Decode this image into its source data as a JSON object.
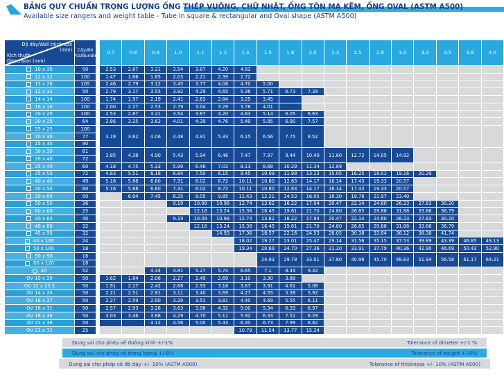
{
  "title": {
    "main": "BẢNG QUY CHUẨN TRỌNG LƯỢNG ỐNG THÉP VUÔNG, CHỮ NHẬT,  ỐNG TÔN MẠ KẼM, ỐNG OVAL (ASTM A500)",
    "sub": "Available size rangers and weight table - Tube in square & rectangular and Oval shape (ASTM A500)"
  },
  "colors": {
    "cyan_header": "#29a9e0",
    "navy_cell": "#174a96",
    "label_dark": "#2ba0d7",
    "label_light": "#45b0e1",
    "empty_grey": "#d8d9db",
    "title_navy": "#16418f"
  },
  "table": {
    "corner": {
      "wall_label": "Độ dày/Wall thickness",
      "wall_unit": "(mm)",
      "dim_label1": "Kích thước",
      "dim_label2": "Dimension (mm)"
    },
    "bundle_line1": "Cây/Bó",
    "bundle_line2": "Pcs/Bundle",
    "columns": [
      "0.7",
      "0.8",
      "0.9",
      "1.0",
      "1.1",
      "1.2",
      "1.4",
      "1.5",
      "1.8",
      "2.0",
      "2.3",
      "2.5",
      "2.8",
      "3.0",
      "3.2",
      "3.5",
      "3.8",
      "4.0"
    ],
    "groups": [
      {
        "rows": [
          {
            "size": "10 x 30",
            "pcs": "50",
            "icon": "square"
          }
        ],
        "values": [
          "2.53",
          "2.87",
          "3.21",
          "3.54",
          "3.87",
          "4.20",
          "4.83",
          null,
          null,
          null,
          null,
          null,
          null,
          null,
          null,
          null,
          null,
          null
        ]
      },
      {
        "rows": [
          {
            "size": "12 x 12",
            "pcs": "100",
            "icon": "square"
          }
        ],
        "values": [
          "1.47",
          "1.66",
          "1.85",
          "2.03",
          "2.21",
          "2.39",
          "2.72",
          null,
          null,
          null,
          null,
          null,
          null,
          null,
          null,
          null,
          null,
          null
        ]
      },
      {
        "rows": [
          {
            "size": "13 x 26",
            "pcs": "105",
            "icon": "square"
          }
        ],
        "values": [
          "2.46",
          "2.79",
          "3.12",
          "3.45",
          "3.77",
          "4.08",
          "4.70",
          "5.00",
          null,
          null,
          null,
          null,
          null,
          null,
          null,
          null,
          null,
          null
        ]
      },
      {
        "rows": [
          {
            "size": "12 x 32",
            "pcs": "50",
            "icon": "square"
          }
        ],
        "values": [
          "2.79",
          "3.17",
          "3.55",
          "3.92",
          "4.29",
          "4.65",
          "5.36",
          "5.71",
          "6.73",
          "7.39",
          null,
          null,
          null,
          null,
          null,
          null,
          null,
          null
        ]
      },
      {
        "rows": [
          {
            "size": "14 x 14",
            "pcs": "100",
            "icon": "square"
          }
        ],
        "values": [
          "1.74",
          "1.97",
          "2.19",
          "2.41",
          "2.63",
          "2.84",
          "3.25",
          "3.45",
          "",
          null,
          null,
          null,
          null,
          null,
          null,
          null,
          null,
          null
        ]
      },
      {
        "rows": [
          {
            "size": "16 x 16",
            "pcs": "100",
            "icon": "square"
          }
        ],
        "values": [
          "2.00",
          "2.27",
          "2.53",
          "2.79",
          "3.04",
          "3.29",
          "3.78",
          "4.01",
          "",
          null,
          null,
          null,
          null,
          null,
          null,
          null,
          null,
          null
        ]
      },
      {
        "rows": [
          {
            "size": "20 x 20",
            "pcs": "100",
            "icon": "square"
          }
        ],
        "values": [
          "2.53",
          "2.87",
          "3.21",
          "3.54",
          "3.87",
          "4.20",
          "4.83",
          "5.14",
          "6.05",
          "6.63",
          null,
          null,
          null,
          null,
          null,
          null,
          null,
          null
        ]
      },
      {
        "rows": [
          {
            "size": "20 x 25",
            "pcs": "64",
            "icon": "square"
          }
        ],
        "values": [
          "2.86",
          "3.25",
          "3.63",
          "4.01",
          "4.39",
          "4.76",
          "5.49",
          "5.85",
          "6.90",
          "7.57",
          null,
          null,
          null,
          null,
          null,
          null,
          null,
          null
        ]
      },
      {
        "rows": [
          {
            "size": "25 x 25",
            "pcs": "100",
            "icon": "square"
          },
          {
            "size": "20 x 30",
            "pcs": "77",
            "icon": "square"
          },
          {
            "size": "15 x 35",
            "pcs": "90",
            "icon": "square"
          }
        ],
        "values": [
          "3.19",
          "3.62",
          "4.06",
          "4.48",
          "4.91",
          "5.33",
          "6.15",
          "6.56",
          "7.75",
          "8.52",
          null,
          null,
          null,
          null,
          null,
          null,
          null,
          null
        ]
      },
      {
        "rows": [
          {
            "size": "30 x 30",
            "pcs": "81",
            "icon": "square"
          },
          {
            "size": "20 x 40",
            "pcs": "72",
            "icon": "square"
          }
        ],
        "values": [
          "3.85",
          "4.38",
          "4.90",
          "5.43",
          "5.94",
          "6.46",
          "7.47",
          "7.97",
          "9.44",
          "10.40",
          "11.80",
          "12.72",
          "14.05",
          "14.92",
          null,
          null,
          null,
          null
        ]
      },
      {
        "rows": [
          {
            "size": "25 x 40",
            "pcs": "60",
            "icon": "square"
          }
        ],
        "values": [
          "4.18",
          "4.75",
          "5.33",
          "5.90",
          "6.46",
          "7.02",
          "8.13",
          "8.68",
          "10.29",
          "11.34",
          "12.89",
          null,
          null,
          null,
          null,
          null,
          null,
          null
        ]
      },
      {
        "rows": [
          {
            "size": "25 x 50",
            "pcs": "72",
            "icon": "square"
          }
        ],
        "values": [
          "4.83",
          "5.51",
          "6.18",
          "6.84",
          "7.50",
          "8.15",
          "9.45",
          "10.09",
          "11.98",
          "13.23",
          "15.05",
          "16.25",
          "18.01",
          "19.16",
          "20.29",
          null,
          null,
          null
        ]
      },
      {
        "rows": [
          {
            "size": "40 x 40",
            "pcs": "49",
            "icon": "square"
          }
        ],
        "values": [
          "5.16",
          "5.88",
          "6.60",
          "7.31",
          "8.02",
          "8.72",
          "10.11",
          "10.80",
          "12.83",
          "14.17",
          "16.14",
          "17.43",
          "19.33",
          "20.57",
          null,
          null,
          null,
          null
        ]
      },
      {
        "rows": [
          {
            "size": "30 x 50",
            "pcs": "60",
            "icon": "square"
          }
        ],
        "values": [
          "5.16",
          "5.88",
          "6.60",
          "7.31",
          "8.02",
          "8.72",
          "10.11",
          "10.80",
          "12.83",
          "14.17",
          "16.14",
          "17.43",
          "19.33",
          "20.57",
          null,
          null,
          null,
          null
        ]
      },
      {
        "rows": [
          {
            "size": "30 x 60",
            "pcs": "50",
            "icon": "square"
          }
        ],
        "values": [
          null,
          "6.64",
          "7.45",
          "8.25",
          "9.05",
          "9.85",
          "11.43",
          "12.21",
          "14.53",
          "16.05",
          "18.30",
          "19.78",
          "21.97",
          "23.40",
          null,
          null,
          null,
          null
        ]
      },
      {
        "rows": [
          {
            "size": "50 x 50",
            "pcs": "36",
            "icon": "square"
          }
        ],
        "values": [
          null,
          null,
          null,
          "9.19",
          "10.09",
          "10.98",
          "12.74",
          "13.62",
          "16.22",
          "17.94",
          "20.47",
          "22.14",
          "24.60",
          "26.23",
          "27.83",
          "30.20",
          null,
          null
        ]
      },
      {
        "rows": [
          {
            "size": "60 x 60",
            "pcs": "25",
            "icon": "square"
          }
        ],
        "values": [
          null,
          null,
          null,
          null,
          "12.16",
          "13.24",
          "15.38",
          "16.45",
          "19.61",
          "21.70",
          "24.80",
          "26.85",
          "29.88",
          "31.88",
          "33.86",
          "36.79",
          null,
          null
        ]
      },
      {
        "rows": [
          {
            "size": "40 x 60",
            "pcs": "40",
            "icon": "square"
          }
        ],
        "values": [
          null,
          null,
          null,
          "9.19",
          "10.09",
          "10.98",
          "12.74",
          "13.62",
          "16.22",
          "17.94",
          "20.47",
          "22.14",
          "24.60",
          "26.23",
          "27.83",
          "30.20",
          null,
          null
        ]
      },
      {
        "rows": [
          {
            "size": "40 x 80",
            "pcs": "32",
            "icon": "square"
          }
        ],
        "values": [
          null,
          null,
          null,
          null,
          "12.16",
          "13.24",
          "15.38",
          "16.45",
          "19.61",
          "21.70",
          "24.80",
          "26.85",
          "29.88",
          "31.88",
          "33.86",
          "36.79",
          null,
          null
        ]
      },
      {
        "rows": [
          {
            "size": "45 x 90",
            "pcs": "32",
            "icon": "square"
          }
        ],
        "values": [
          null,
          null,
          null,
          null,
          null,
          "14.93",
          "17.36",
          "18.57",
          "22.16",
          "24.53",
          "28.05",
          "30.38",
          "33.84",
          "36.12",
          "38.38",
          "41.74",
          null,
          null
        ]
      },
      {
        "rows": [
          {
            "size": "40 x 100",
            "pcs": "24",
            "icon": "square"
          }
        ],
        "values": [
          null,
          null,
          null,
          null,
          null,
          null,
          "18.02",
          "19.27",
          "23.01",
          "25.47",
          "29.14",
          "31.56",
          "35.15",
          "37.53",
          "39.89",
          "43.39",
          "46.85",
          "49.13"
        ]
      },
      {
        "rows": [
          {
            "size": "50 x 100",
            "pcs": "18",
            "icon": "square"
          }
        ],
        "values": [
          null,
          null,
          null,
          null,
          null,
          null,
          "19.34",
          "20.69",
          "24.70",
          "27.36",
          "31.30",
          "33.91",
          "37.79",
          "40.36",
          "42.90",
          "46.69",
          "50.43",
          "52.90"
        ]
      },
      {
        "rows": [
          {
            "size": "90 x 90",
            "pcs": "16",
            "icon": "square"
          },
          {
            "size": "60 x 120",
            "pcs": "18",
            "icon": "square"
          }
        ],
        "values": [
          null,
          null,
          null,
          null,
          null,
          null,
          null,
          "24.93",
          "29.79",
          "33.01",
          "37.80",
          "40.98",
          "45.70",
          "48.83",
          "51.94",
          "56.58",
          "61.17",
          "64.21"
        ]
      },
      {
        "rows": [
          {
            "size": "30",
            "pcs": "52",
            "icon": "circle"
          }
        ],
        "values": [
          null,
          null,
          "4.34",
          "4.81",
          "5.27",
          "5.74",
          "6.65",
          "7.1",
          "8.44",
          "9.32",
          null,
          null,
          null,
          null,
          null,
          null,
          null,
          null
        ]
      },
      {
        "rows": [
          {
            "size": "OV 10 x 20",
            "pcs": "50",
            "icon": "none"
          }
        ],
        "values": [
          "1.62",
          "1.84",
          "2.06",
          "2.27",
          "2.49",
          "2.69",
          "3.10",
          "3.30",
          "3.88",
          null,
          null,
          null,
          null,
          null,
          null,
          null,
          null,
          null
        ]
      },
      {
        "rows": [
          {
            "size": "OV 12 x 23.5",
            "pcs": "50",
            "icon": "none"
          }
        ],
        "values": [
          "1.91",
          "2.17",
          "2.42",
          "2.68",
          "2.93",
          "3.18",
          "3.67",
          "3.91",
          "4.61",
          "5.06",
          null,
          null,
          null,
          null,
          null,
          null,
          null,
          null
        ]
      },
      {
        "rows": [
          {
            "size": "OV 14 x 24",
            "pcs": "50",
            "icon": "none"
          }
        ],
        "values": [
          "2.21",
          "2.51",
          "2.81",
          "3.11",
          "3.40",
          "3.69",
          "4.27",
          "4.55",
          "5.38",
          "5.92",
          null,
          null,
          null,
          null,
          null,
          null,
          null,
          null
        ]
      },
      {
        "rows": [
          {
            "size": "OV 16 x 27",
            "pcs": "50",
            "icon": "none"
          }
        ],
        "values": [
          "2.27",
          "2.59",
          "2.90",
          "3.20",
          "3.51",
          "3.81",
          "4.40",
          "4.69",
          "5.55",
          "6.11",
          null,
          null,
          null,
          null,
          null,
          null,
          null,
          null
        ]
      },
      {
        "rows": [
          {
            "size": "OV 16 x 31",
            "pcs": "50",
            "icon": "none"
          }
        ],
        "values": [
          "2.57",
          "2.93",
          "3.28",
          "3.63",
          "3.98",
          "4.32",
          "5.00",
          "5.34",
          "6.33",
          "6.97",
          null,
          null,
          null,
          null,
          null,
          null,
          null,
          null
        ]
      },
      {
        "rows": [
          {
            "size": "OV 18 x 36",
            "pcs": "50",
            "icon": "none"
          }
        ],
        "values": [
          "3.03",
          "3.46",
          "3.88",
          "4.29",
          "4.70",
          "5.11",
          "5.92",
          "6.33",
          "7.51",
          "8.29",
          null,
          null,
          null,
          null,
          null,
          null,
          null,
          null
        ]
      },
      {
        "rows": [
          {
            "size": "OV 21 x 38",
            "pcs": "50",
            "icon": "none"
          }
        ],
        "values": [
          "",
          "",
          "4.12",
          "4.56",
          "5.00",
          "5.43",
          "6.30",
          "6.73",
          "7.99",
          "8.82",
          null,
          null,
          null,
          null,
          null,
          null,
          null,
          null
        ]
      },
      {
        "rows": [
          {
            "size": "OV 21 x 72",
            "pcs": "25",
            "icon": "none"
          }
        ],
        "values": [
          null,
          null,
          null,
          null,
          null,
          null,
          "10.79",
          "11.54",
          "13.77",
          "15.24",
          null,
          null,
          null,
          null,
          null,
          null,
          null,
          null
        ]
      }
    ]
  },
  "footer": [
    {
      "left": "Dung sai cho phép về đường kính +/-1%",
      "right": "Tolerance of dimeter +/-1 %",
      "style": "grey"
    },
    {
      "left": "Dung sai cho phép về trọng lượng +/-8%",
      "right": "Tolerance of weight +/-8%",
      "style": "cyan"
    },
    {
      "left": "Dung sai cho phép về độ dày +/- 10% (ASTM A500)",
      "right": "Tolerance of thickness +/- 10% (ASTM A500)",
      "style": "grey"
    }
  ]
}
